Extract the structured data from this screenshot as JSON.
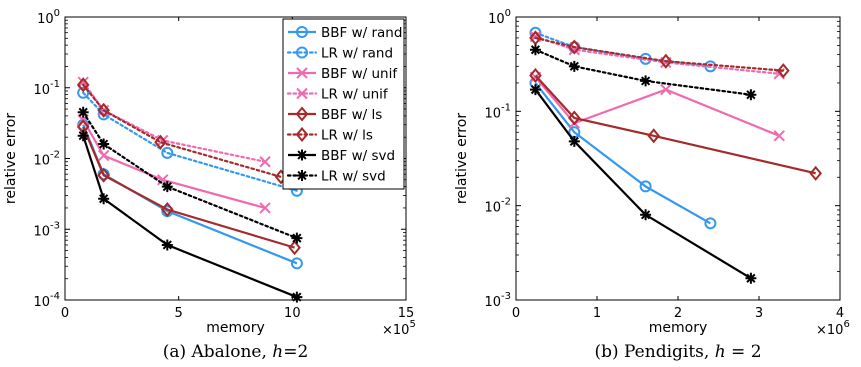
{
  "colors": {
    "blue": "#3399ee",
    "pink": "#f06ab0",
    "red": "#a52a2a",
    "black": "#000000"
  },
  "chart_data": [
    {
      "type": "line",
      "caption": "(a) Abalone, h=2",
      "caption_parts": [
        "(a) Abalone, ",
        "h",
        "=2"
      ],
      "xlabel": "memory",
      "ylabel": "relative error",
      "x_multiplier": "×10",
      "x_multiplier_exp": "5",
      "xlim": [
        0,
        15
      ],
      "ylim": [
        0.0001,
        1
      ],
      "yscale": "log",
      "xticks": [
        "0",
        "5",
        "10",
        "15"
      ],
      "xtick_values": [
        0,
        5,
        10,
        15
      ],
      "yticks": [
        "10",
        "10",
        "10",
        "10",
        "10"
      ],
      "ytick_exps": [
        "-4",
        "-3",
        "-2",
        "-1",
        "0"
      ],
      "ytick_values": [
        0.0001,
        0.001,
        0.01,
        0.1,
        1
      ],
      "legend": "top-right",
      "series": [
        {
          "name": "BBF w/ rand",
          "color": "blue",
          "dash": "solid",
          "marker": "circle",
          "x": [
            0.8,
            1.7,
            4.5,
            10.2
          ],
          "y": [
            0.03,
            0.006,
            0.0018,
            0.00033
          ]
        },
        {
          "name": "LR w/ rand",
          "color": "blue",
          "dash": "dotted",
          "marker": "circle",
          "x": [
            0.8,
            1.7,
            4.5,
            10.2
          ],
          "y": [
            0.085,
            0.042,
            0.012,
            0.0035
          ]
        },
        {
          "name": "BBF w/ unif",
          "color": "pink",
          "dash": "solid",
          "marker": "x",
          "x": [
            0.8,
            1.7,
            4.3,
            8.8
          ],
          "y": [
            0.035,
            0.011,
            0.005,
            0.002
          ]
        },
        {
          "name": "LR w/ unif",
          "color": "pink",
          "dash": "dotted",
          "marker": "x",
          "x": [
            0.8,
            1.7,
            4.3,
            8.8
          ],
          "y": [
            0.12,
            0.048,
            0.018,
            0.009
          ]
        },
        {
          "name": "BBF w/ ls",
          "color": "red",
          "dash": "solid",
          "marker": "diamond",
          "x": [
            0.8,
            1.7,
            4.5,
            10.1
          ],
          "y": [
            0.028,
            0.0058,
            0.0019,
            0.00055
          ]
        },
        {
          "name": "LR w/ ls",
          "color": "red",
          "dash": "dotted",
          "marker": "diamond",
          "x": [
            0.8,
            1.7,
            4.2,
            9.5
          ],
          "y": [
            0.11,
            0.048,
            0.017,
            0.0055
          ]
        },
        {
          "name": "BBF w/ svd",
          "color": "black",
          "dash": "solid",
          "marker": "star",
          "x": [
            0.8,
            1.7,
            4.5,
            10.2
          ],
          "y": [
            0.021,
            0.0027,
            0.0006,
            0.00011
          ]
        },
        {
          "name": "LR w/ svd",
          "color": "black",
          "dash": "dotted",
          "marker": "star",
          "x": [
            0.8,
            1.7,
            4.5,
            10.2
          ],
          "y": [
            0.045,
            0.016,
            0.004,
            0.00075
          ]
        }
      ]
    },
    {
      "type": "line",
      "caption": "(b) Pendigits, h = 2",
      "caption_parts": [
        "(b) Pendigits, ",
        "h",
        " = 2"
      ],
      "xlabel": "memory",
      "ylabel": "relative error",
      "x_multiplier": "×10",
      "x_multiplier_exp": "6",
      "xlim": [
        0,
        4
      ],
      "ylim": [
        0.001,
        1
      ],
      "yscale": "log",
      "xticks": [
        "0",
        "1",
        "2",
        "3",
        "4"
      ],
      "xtick_values": [
        0,
        1,
        2,
        3,
        4
      ],
      "yticks": [
        "10",
        "10",
        "10",
        "10"
      ],
      "ytick_exps": [
        "-3",
        "-2",
        "-1",
        "0"
      ],
      "ytick_values": [
        0.001,
        0.01,
        0.1,
        1
      ],
      "legend": "",
      "series": [
        {
          "name": "BBF w/ rand",
          "color": "blue",
          "dash": "solid",
          "marker": "circle",
          "x": [
            0.24,
            0.72,
            1.6,
            2.4
          ],
          "y": [
            0.2,
            0.06,
            0.016,
            0.0065
          ]
        },
        {
          "name": "LR w/ rand",
          "color": "blue",
          "dash": "dotted",
          "marker": "circle",
          "x": [
            0.24,
            0.72,
            1.6,
            2.4
          ],
          "y": [
            0.68,
            0.48,
            0.36,
            0.3
          ]
        },
        {
          "name": "BBF w/ unif",
          "color": "pink",
          "dash": "solid",
          "marker": "x",
          "x": [
            0.24,
            0.72,
            1.85,
            3.25
          ],
          "y": [
            0.23,
            0.075,
            0.17,
            0.055
          ]
        },
        {
          "name": "LR w/ unif",
          "color": "pink",
          "dash": "dotted",
          "marker": "x",
          "x": [
            0.24,
            0.72,
            1.85,
            3.25
          ],
          "y": [
            0.62,
            0.45,
            0.33,
            0.25
          ]
        },
        {
          "name": "BBF w/ ls",
          "color": "red",
          "dash": "solid",
          "marker": "diamond",
          "x": [
            0.24,
            0.72,
            1.7,
            3.7
          ],
          "y": [
            0.24,
            0.085,
            0.055,
            0.022
          ]
        },
        {
          "name": "LR w/ ls",
          "color": "red",
          "dash": "dotted",
          "marker": "diamond",
          "x": [
            0.24,
            0.72,
            1.85,
            3.3
          ],
          "y": [
            0.6,
            0.48,
            0.34,
            0.27
          ]
        },
        {
          "name": "BBF w/ svd",
          "color": "black",
          "dash": "solid",
          "marker": "star",
          "x": [
            0.24,
            0.72,
            1.6,
            2.9
          ],
          "y": [
            0.17,
            0.048,
            0.008,
            0.0017
          ]
        },
        {
          "name": "LR w/ svd",
          "color": "black",
          "dash": "dotted",
          "marker": "star",
          "x": [
            0.24,
            0.72,
            1.6,
            2.9
          ],
          "y": [
            0.45,
            0.3,
            0.21,
            0.15
          ]
        }
      ]
    }
  ]
}
